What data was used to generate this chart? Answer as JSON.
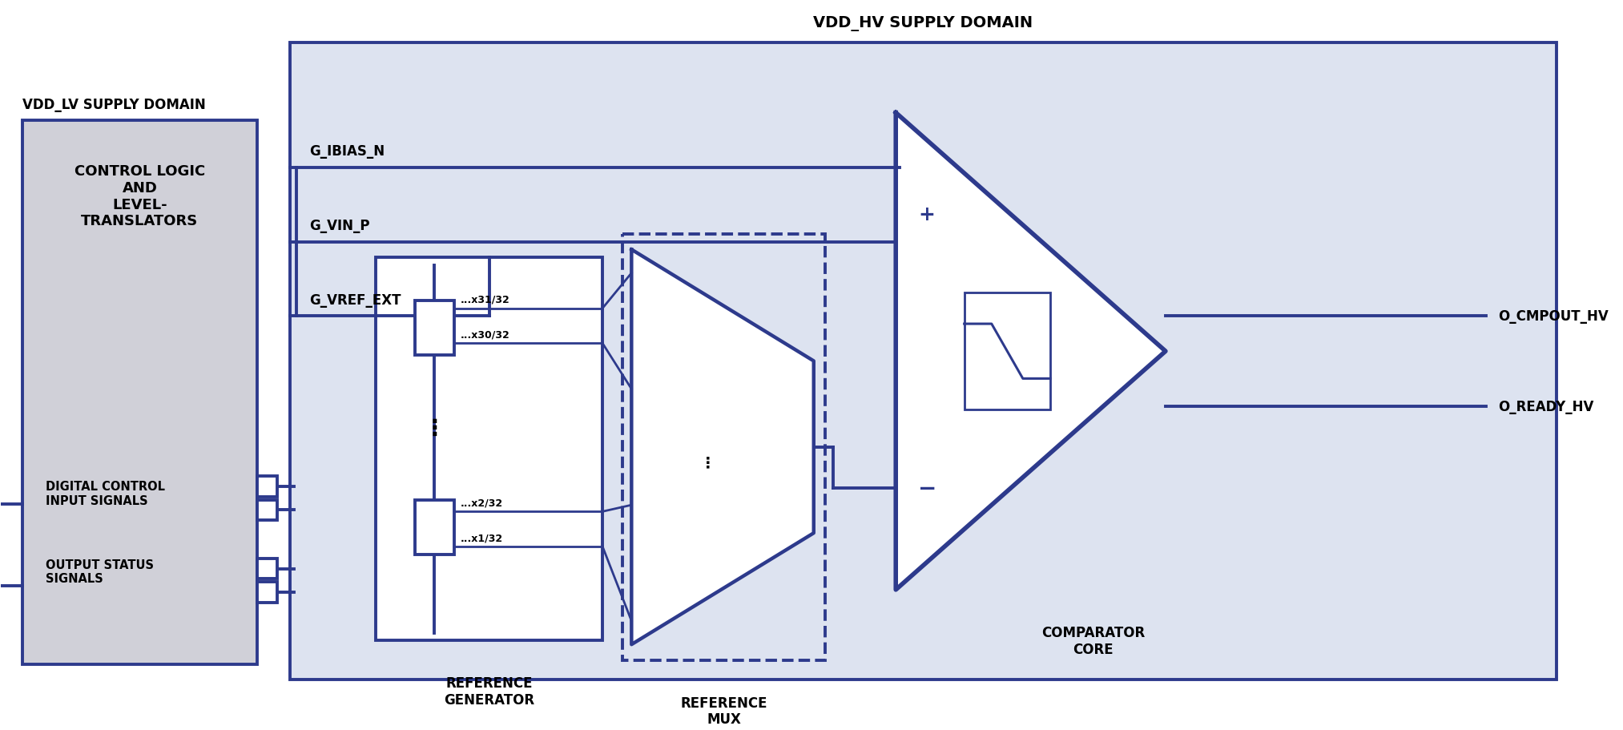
{
  "bg_color": "#ffffff",
  "hv_domain_color": "#dde3f0",
  "lv_box_color": "#d0d0d8",
  "border_color": "#2d3a8c",
  "line_color": "#2d3a8c",
  "title_hv": "VDD_HV SUPPLY DOMAIN",
  "title_lv": "VDD_LV SUPPLY DOMAIN",
  "lv_block_text": "CONTROL LOGIC\nAND\nLEVEL-\nTRANSLATORS",
  "digital_ctrl_text": "DIGITAL CONTROL\nINPUT SIGNALS",
  "output_status_text": "OUTPUT STATUS\nSIGNALS",
  "refgen_label": "REFERENCE\nGENERATOR",
  "refmux_label": "REFERENCE\nMUX",
  "comp_label": "COMPARATOR\nCORE",
  "signal_ibias": "G_IBIAS_N",
  "signal_vin": "G_VIN_P",
  "signal_vref": "G_VREF_EXT",
  "output_cmpout": "O_CMPOUT_HV",
  "output_ready": "O_READY_HV",
  "res_label_1": "...x31/32",
  "res_label_2": "...x30/32",
  "res_label_3": "...x2/32",
  "res_label_4": "...x1/32",
  "font_title": 14,
  "font_block": 13,
  "font_label": 12,
  "font_signal": 12
}
